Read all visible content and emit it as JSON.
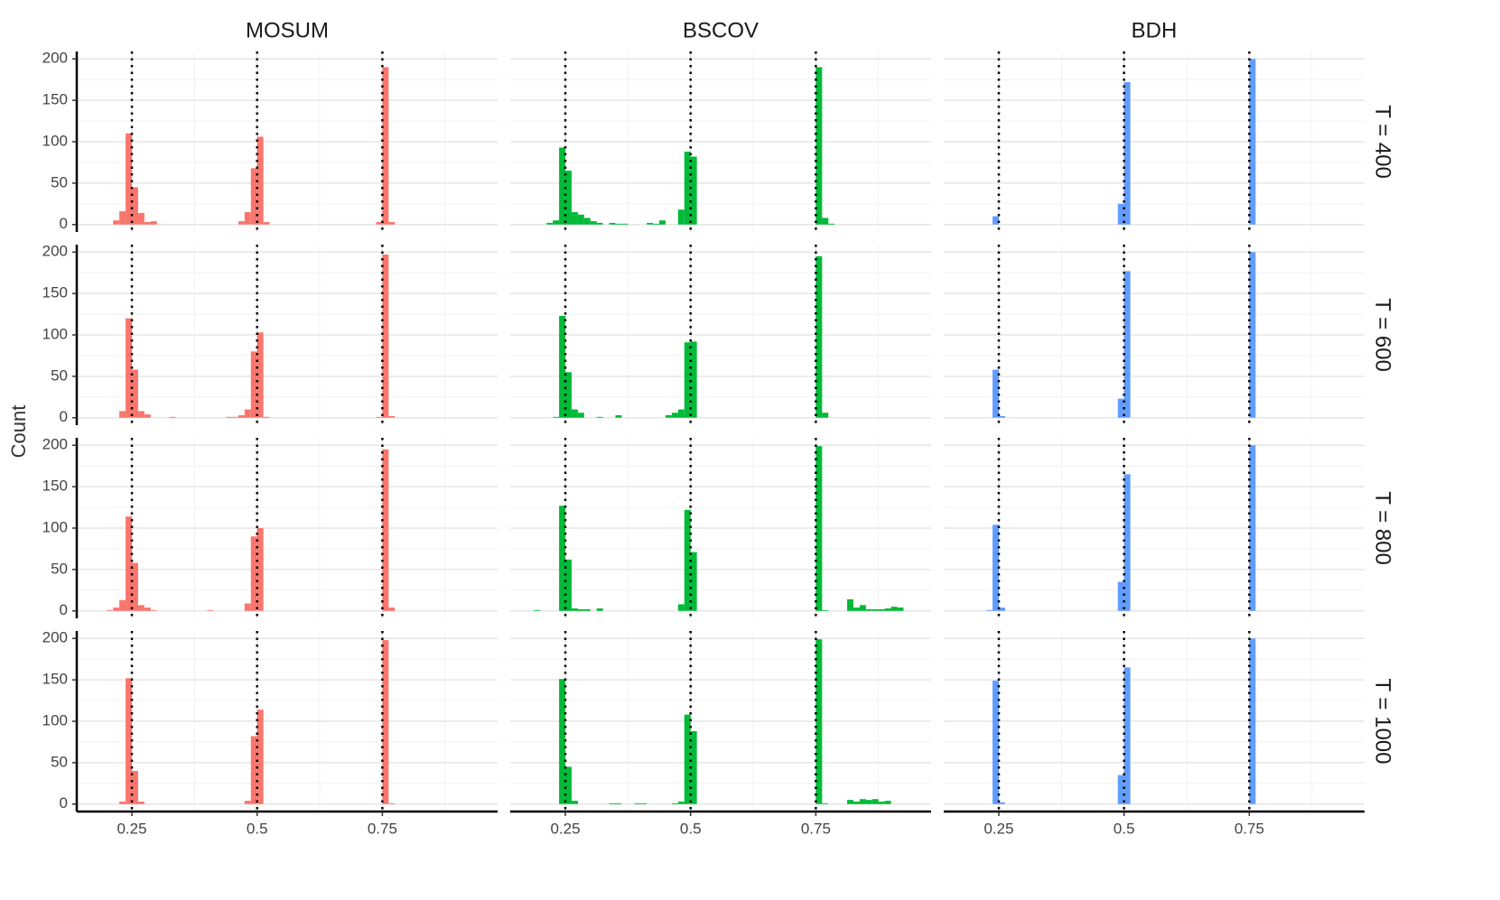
{
  "chart_data": {
    "type": "histogram",
    "y_label": "Count",
    "rows": [
      "T = 400",
      "T = 600",
      "T = 800",
      "T = 1000"
    ],
    "xlim": [
      0.14,
      0.98
    ],
    "ylim": [
      -9,
      209
    ],
    "xticks": [
      0.25,
      0.5,
      0.75
    ],
    "x_minor_ticks": [
      0.375,
      0.625,
      0.875
    ],
    "yticks": [
      0,
      50,
      100,
      150,
      200
    ],
    "y_minor_ticks": [
      25,
      75,
      125,
      175
    ],
    "grid": true,
    "bin_width": 0.0125,
    "reference_lines": [
      0.25,
      0.5,
      0.75
    ],
    "series": [
      {
        "name": "MOSUM",
        "color": "#f8766d",
        "panels": [
          {
            "x": [
              0.2125,
              0.225,
              0.2375,
              0.25,
              0.2625,
              0.275,
              0.2875,
              0.4625,
              0.475,
              0.4875,
              0.5,
              0.5125,
              0.7375,
              0.75,
              0.7625
            ],
            "values": [
              5,
              16,
              110,
              45,
              14,
              3,
              4,
              4,
              15,
              68,
              106,
              3,
              3,
              190,
              3
            ]
          },
          {
            "x": [
              0.225,
              0.2375,
              0.25,
              0.2625,
              0.275,
              0.325,
              0.4375,
              0.45,
              0.4625,
              0.475,
              0.4875,
              0.5,
              0.5125,
              0.7375,
              0.75,
              0.7625
            ],
            "values": [
              8,
              120,
              58,
              8,
              4,
              1,
              1,
              1,
              3,
              10,
              80,
              103,
              1,
              1,
              197,
              2
            ]
          },
          {
            "x": [
              0.2,
              0.2125,
              0.225,
              0.2375,
              0.25,
              0.2625,
              0.275,
              0.2875,
              0.4,
              0.475,
              0.4875,
              0.5,
              0.75,
              0.7625
            ],
            "values": [
              1,
              4,
              13,
              114,
              58,
              7,
              4,
              1,
              1,
              9,
              90,
              100,
              195,
              4
            ]
          },
          {
            "x": [
              0.225,
              0.2375,
              0.25,
              0.2625,
              0.475,
              0.4875,
              0.5,
              0.75,
              0.7625
            ],
            "values": [
              3,
              152,
              40,
              3,
              4,
              82,
              114,
              198,
              1
            ]
          }
        ]
      },
      {
        "name": "BSCOV",
        "color": "#00ba38",
        "panels": [
          {
            "x": [
              0.2125,
              0.225,
              0.2375,
              0.25,
              0.2625,
              0.275,
              0.2875,
              0.3,
              0.3125,
              0.3375,
              0.35,
              0.3625,
              0.4125,
              0.425,
              0.4375,
              0.475,
              0.4875,
              0.5,
              0.75,
              0.7625,
              0.775
            ],
            "values": [
              2,
              5,
              93,
              65,
              15,
              12,
              8,
              4,
              2,
              2,
              1,
              1,
              2,
              1,
              5,
              18,
              88,
              82,
              190,
              8,
              1
            ]
          },
          {
            "x": [
              0.225,
              0.2375,
              0.25,
              0.2625,
              0.275,
              0.3125,
              0.35,
              0.45,
              0.4625,
              0.475,
              0.4875,
              0.5,
              0.75,
              0.7625
            ],
            "values": [
              1,
              123,
              55,
              10,
              6,
              1,
              3,
              3,
              6,
              10,
              91,
              92,
              195,
              6
            ]
          },
          {
            "x": [
              0.1875,
              0.2375,
              0.25,
              0.2625,
              0.275,
              0.2875,
              0.3125,
              0.475,
              0.4875,
              0.5,
              0.75,
              0.7625,
              0.8125,
              0.825,
              0.8375,
              0.85,
              0.8625,
              0.875,
              0.8875,
              0.9,
              0.9125
            ],
            "values": [
              1,
              127,
              62,
              3,
              2,
              2,
              3,
              8,
              122,
              71,
              199,
              1,
              14,
              4,
              7,
              2,
              2,
              2,
              3,
              5,
              4
            ]
          },
          {
            "x": [
              0.2375,
              0.25,
              0.2625,
              0.3375,
              0.35,
              0.3875,
              0.4,
              0.4625,
              0.475,
              0.4875,
              0.5,
              0.75,
              0.7625,
              0.8125,
              0.825,
              0.8375,
              0.85,
              0.8625,
              0.875,
              0.8875
            ],
            "values": [
              151,
              45,
              4,
              1,
              1,
              1,
              1,
              1,
              3,
              108,
              88,
              199,
              1,
              5,
              3,
              6,
              5,
              6,
              3,
              4
            ]
          }
        ]
      },
      {
        "name": "BDH",
        "color": "#619cff",
        "panels": [
          {
            "x": [
              0.2375,
              0.4875,
              0.5,
              0.75
            ],
            "values": [
              10,
              25,
              172,
              200
            ]
          },
          {
            "x": [
              0.2375,
              0.25,
              0.4875,
              0.5,
              0.75
            ],
            "values": [
              58,
              2,
              23,
              177,
              200
            ]
          },
          {
            "x": [
              0.225,
              0.2375,
              0.25,
              0.4875,
              0.5,
              0.75
            ],
            "values": [
              1,
              104,
              4,
              35,
              165,
              200
            ]
          },
          {
            "x": [
              0.2375,
              0.25,
              0.4875,
              0.5,
              0.75
            ],
            "values": [
              149,
              2,
              35,
              165,
              200
            ]
          }
        ]
      }
    ]
  }
}
